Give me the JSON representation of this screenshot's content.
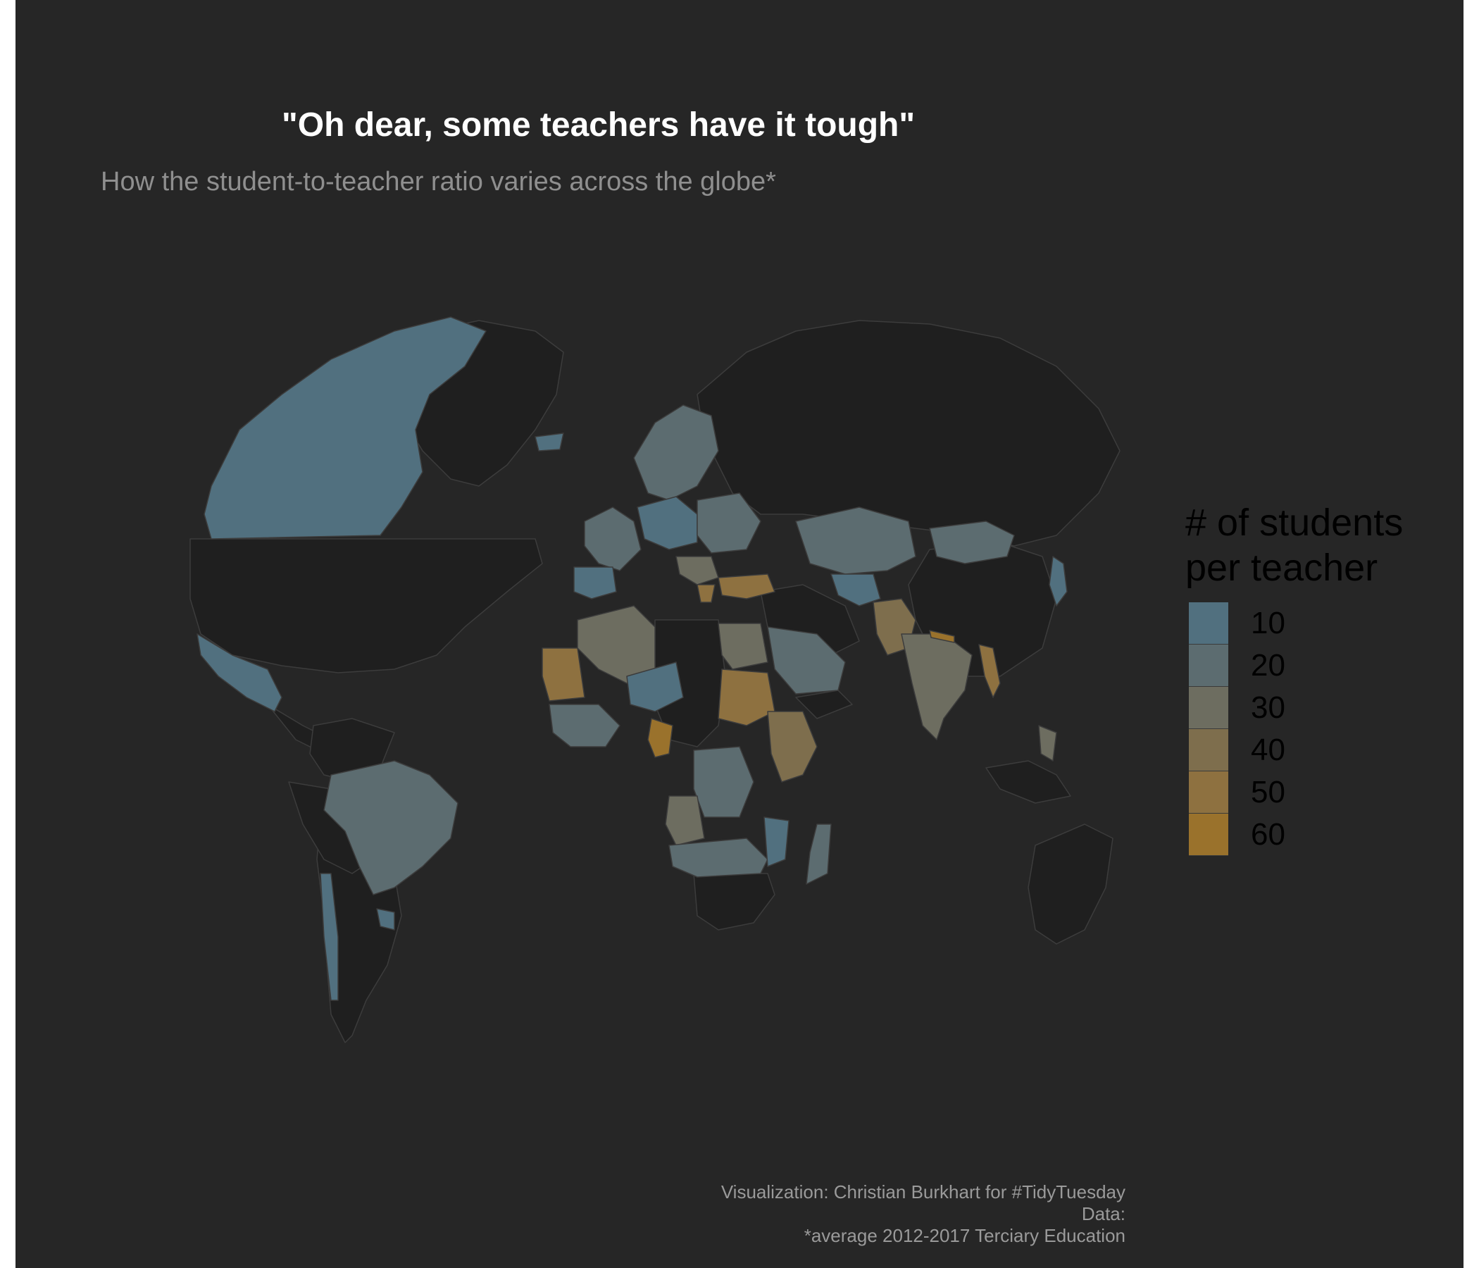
{
  "title": "\"Oh dear, some teachers have it tough\"",
  "subtitle": "How the student-to-teacher ratio varies across the globe*",
  "legend": {
    "title_line1": "# of students",
    "title_line2": "per teacher",
    "items": [
      {
        "label": "10",
        "color": "#51707f"
      },
      {
        "label": "20",
        "color": "#5c6c70"
      },
      {
        "label": "30",
        "color": "#6d6d60"
      },
      {
        "label": "40",
        "color": "#7e6e4d"
      },
      {
        "label": "50",
        "color": "#8e7140"
      },
      {
        "label": "60",
        "color": "#9a722c"
      }
    ]
  },
  "caption": {
    "line1": "Visualization: Christian Burkhart for #TidyTuesday",
    "line2": "Data:",
    "line3": "*average 2012-2017 Terciary Education"
  },
  "colors": {
    "background": "#262626",
    "no_data_land": "#1f1f1f",
    "border": "#3c3c3c"
  }
}
